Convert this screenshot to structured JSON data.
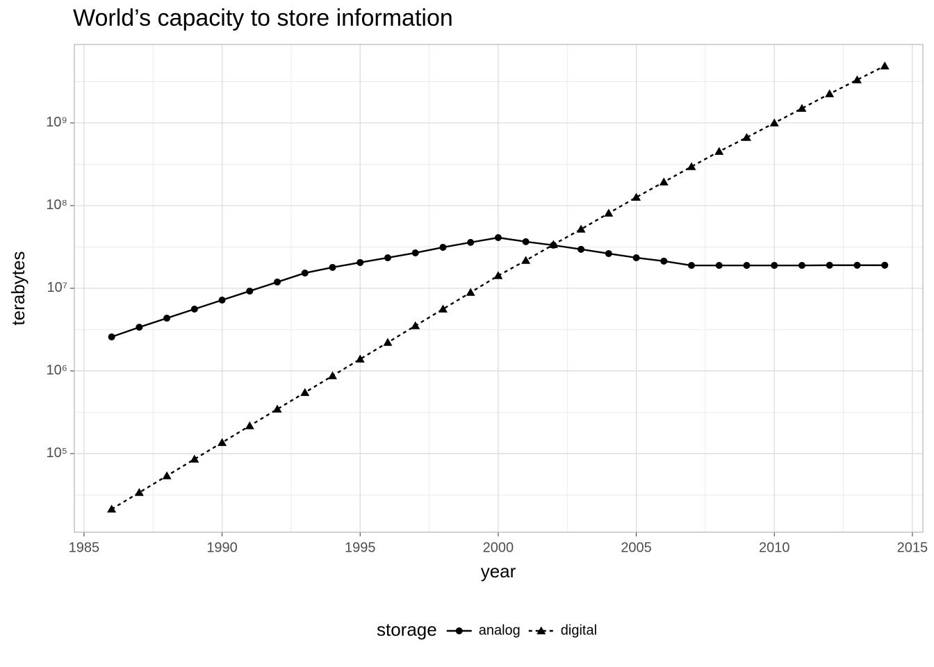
{
  "chart_data": {
    "type": "line",
    "title": "World’s capacity to store information",
    "x_label": "year",
    "y_label": "terabytes",
    "legend_title": "storage",
    "legend_position": "bottom",
    "x": [
      1986,
      1987,
      1988,
      1989,
      1990,
      1991,
      1992,
      1993,
      1994,
      1995,
      1996,
      1997,
      1998,
      1999,
      2000,
      2001,
      2002,
      2003,
      2004,
      2005,
      2006,
      2007,
      2008,
      2009,
      2010,
      2011,
      2012,
      2013,
      2014
    ],
    "series": [
      {
        "name": "analog",
        "color": "#000000",
        "marker": "circle",
        "dash": "solid",
        "values": [
          2580000,
          3380000,
          4350000,
          5600000,
          7200000,
          9250000,
          11900000,
          15300000,
          17900000,
          20500000,
          23400000,
          26800000,
          31300000,
          35900000,
          41000000,
          36600000,
          33200000,
          29600000,
          26300000,
          23400000,
          21300000,
          18900000,
          18900000,
          18900000,
          18900000,
          18900000,
          19000000,
          19000000,
          19000000
        ]
      },
      {
        "name": "digital",
        "color": "#000000",
        "marker": "triangle",
        "dash": "dashed",
        "values": [
          21300,
          33800,
          53800,
          85700,
          136000,
          217000,
          345000,
          548000,
          873000,
          1390000,
          2210000,
          3520000,
          5600000,
          8910000,
          14200000,
          21700000,
          33800000,
          51800000,
          80900000,
          126000000,
          193000000,
          296000000,
          452000000,
          667000000,
          1000000000,
          1500000000,
          2250000000,
          3320000000,
          4890000000
        ]
      }
    ],
    "xlim": [
      1984.65,
      2015.38
    ],
    "xticks": [
      1985,
      1990,
      1995,
      2000,
      2005,
      2010,
      2015
    ],
    "ylim": [
      11200,
      8900000000
    ],
    "y_log": true,
    "yticks": [
      {
        "value": 100000,
        "label": "10⁵"
      },
      {
        "value": 1000000,
        "label": "10⁶"
      },
      {
        "value": 10000000,
        "label": "10⁷"
      },
      {
        "value": 100000000,
        "label": "10⁸"
      },
      {
        "value": 1000000000,
        "label": "10⁹"
      }
    ],
    "grid": true
  }
}
